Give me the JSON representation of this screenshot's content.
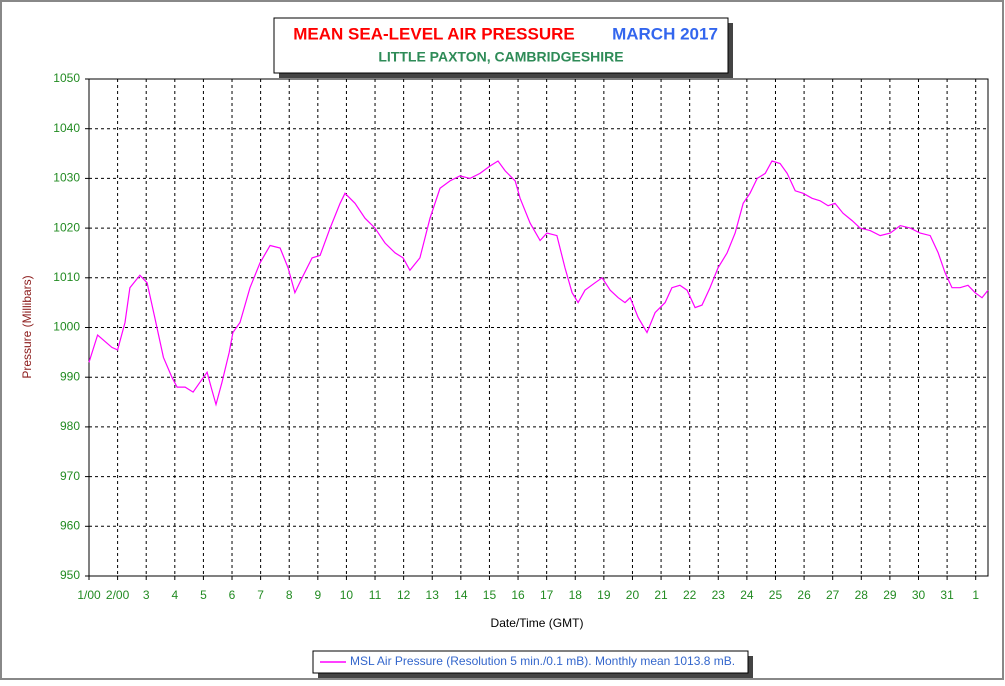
{
  "chart_data": {
    "type": "line",
    "title": "MEAN SEA-LEVEL AIR PRESSURE",
    "title_date": "MARCH 2017",
    "subtitle": "LITTLE PAXTON, CAMBRIDGESHIRE",
    "x_label": "Date/Time (GMT)",
    "y_label": "Pressure (Millibars)",
    "grid": true,
    "legend": "bottom",
    "xlim": [
      0,
      31.43
    ],
    "ylim": [
      950,
      1050
    ],
    "yticks": [
      950,
      960,
      970,
      980,
      990,
      1000,
      1010,
      1020,
      1030,
      1040,
      1050
    ],
    "xticks": [
      {
        "value": 0,
        "label": "1/00"
      },
      {
        "value": 1,
        "label": "2/00"
      },
      {
        "value": 2,
        "label": "3"
      },
      {
        "value": 3,
        "label": "4"
      },
      {
        "value": 4,
        "label": "5"
      },
      {
        "value": 5,
        "label": "6"
      },
      {
        "value": 6,
        "label": "7"
      },
      {
        "value": 7,
        "label": "8"
      },
      {
        "value": 8,
        "label": "9"
      },
      {
        "value": 9,
        "label": "10"
      },
      {
        "value": 10,
        "label": "11"
      },
      {
        "value": 11,
        "label": "12"
      },
      {
        "value": 12,
        "label": "13"
      },
      {
        "value": 13,
        "label": "14"
      },
      {
        "value": 14,
        "label": "15"
      },
      {
        "value": 15,
        "label": "16"
      },
      {
        "value": 16,
        "label": "17"
      },
      {
        "value": 17,
        "label": "18"
      },
      {
        "value": 18,
        "label": "19"
      },
      {
        "value": 19,
        "label": "20"
      },
      {
        "value": 20,
        "label": "21"
      },
      {
        "value": 21,
        "label": "22"
      },
      {
        "value": 22,
        "label": "23"
      },
      {
        "value": 23,
        "label": "24"
      },
      {
        "value": 24,
        "label": "25"
      },
      {
        "value": 25,
        "label": "26"
      },
      {
        "value": 26,
        "label": "27"
      },
      {
        "value": 27,
        "label": "28"
      },
      {
        "value": 28,
        "label": "29"
      },
      {
        "value": 29,
        "label": "30"
      },
      {
        "value": 30,
        "label": "31"
      },
      {
        "value": 31,
        "label": "1"
      }
    ],
    "x": [
      0,
      0.3,
      0.8,
      1.0,
      1.26,
      1.43,
      1.78,
      2.03,
      2.3,
      2.6,
      2.9,
      3.08,
      3.36,
      3.64,
      3.88,
      4.13,
      4.27,
      4.44,
      4.65,
      4.9,
      5.03,
      5.28,
      5.63,
      5.98,
      6.33,
      6.68,
      6.96,
      7.2,
      7.45,
      7.8,
      8.08,
      8.43,
      8.78,
      8.95,
      9.3,
      9.65,
      10.0,
      10.35,
      10.7,
      10.98,
      11.22,
      11.57,
      11.92,
      12.27,
      12.62,
      12.97,
      13.32,
      13.67,
      14.02,
      14.3,
      14.55,
      14.9,
      15.07,
      15.42,
      15.77,
      16.01,
      16.36,
      16.64,
      16.89,
      17.1,
      17.34,
      17.69,
      17.94,
      18.22,
      18.5,
      18.74,
      18.92,
      19.2,
      19.51,
      19.79,
      20.14,
      20.38,
      20.66,
      20.91,
      21.19,
      21.43,
      21.71,
      21.99,
      22.31,
      22.59,
      22.87,
      23.11,
      23.36,
      23.64,
      23.88,
      24.16,
      24.41,
      24.69,
      24.97,
      25.28,
      25.56,
      25.84,
      26.08,
      26.36,
      26.68,
      26.96,
      27.31,
      27.66,
      28.01,
      28.36,
      28.71,
      29.06,
      29.41,
      29.69,
      29.93,
      30.17,
      30.45,
      30.73,
      30.98,
      31.22,
      31.43
    ],
    "series": [
      {
        "name": "MSL Air Pressure (Resolution 5 min./0.1 mB). Monthly mean 1013.8 mB.",
        "color": "#ff00ff",
        "values": [
          993,
          998.5,
          996,
          995.5,
          1001,
          1008,
          1010.5,
          1009,
          1002,
          994,
          990,
          988,
          988,
          987,
          989,
          991,
          988,
          984.5,
          989,
          995,
          999,
          1001,
          1008,
          1013,
          1016.5,
          1016,
          1012,
          1007,
          1010,
          1014,
          1014.5,
          1020,
          1025,
          1027,
          1025,
          1022,
          1020,
          1017,
          1015,
          1014,
          1011.5,
          1014,
          1022,
          1028,
          1029.5,
          1030.5,
          1030,
          1031,
          1032.5,
          1033.5,
          1031.5,
          1029.5,
          1026,
          1021,
          1017.5,
          1019,
          1018.5,
          1012,
          1007,
          1005,
          1007.5,
          1009,
          1010,
          1007.5,
          1006,
          1005,
          1006,
          1002,
          999,
          1003,
          1005,
          1008,
          1008.5,
          1007.5,
          1004,
          1004.5,
          1008,
          1012,
          1015,
          1019,
          1025,
          1027,
          1030,
          1031,
          1033.5,
          1033,
          1031,
          1027.5,
          1027,
          1026,
          1025.5,
          1024.5,
          1025,
          1023,
          1021.5,
          1020,
          1019.5,
          1018.5,
          1019,
          1020.5,
          1020,
          1019,
          1018.5,
          1015,
          1011,
          1008,
          1008,
          1008.5,
          1007,
          1006,
          1007.5
        ]
      }
    ]
  }
}
